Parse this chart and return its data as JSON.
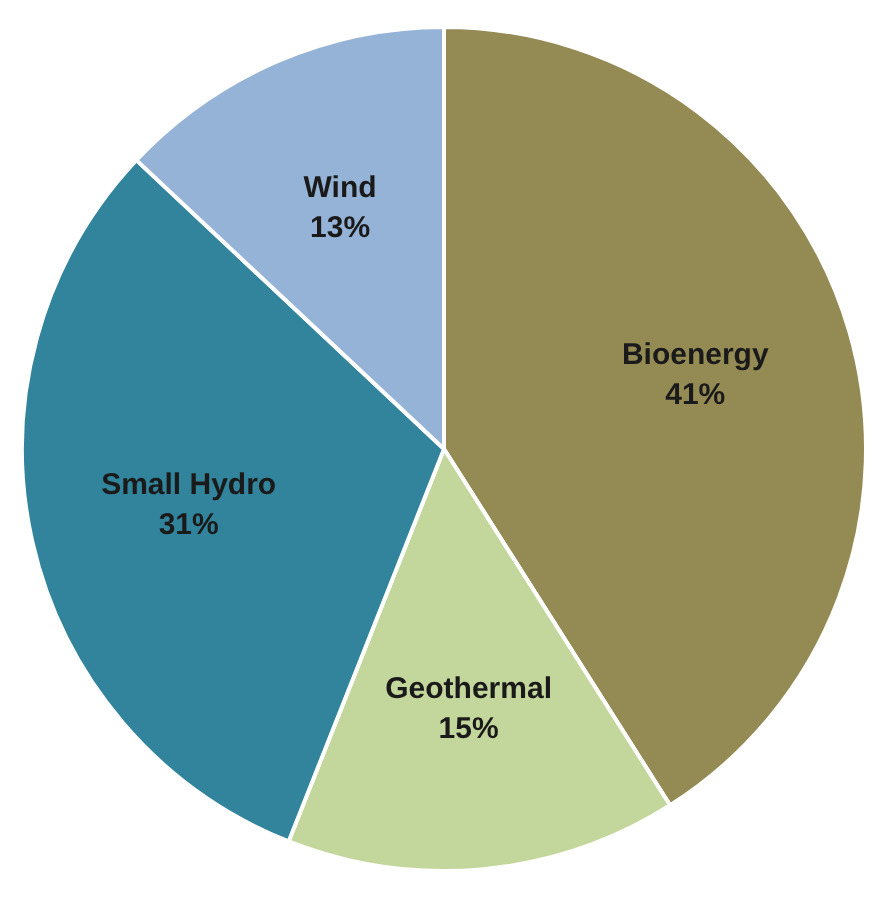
{
  "chart_data": {
    "type": "pie",
    "categories": [
      "Bioenergy",
      "Geothermal",
      "Small Hydro",
      "Wind"
    ],
    "values": [
      41,
      15,
      31,
      13
    ],
    "colors": [
      "#948a54",
      "#c3d69b",
      "#31849b",
      "#95b3d7"
    ],
    "value_labels": [
      "41%",
      "15%",
      "31%",
      "13%"
    ],
    "legend": false
  }
}
